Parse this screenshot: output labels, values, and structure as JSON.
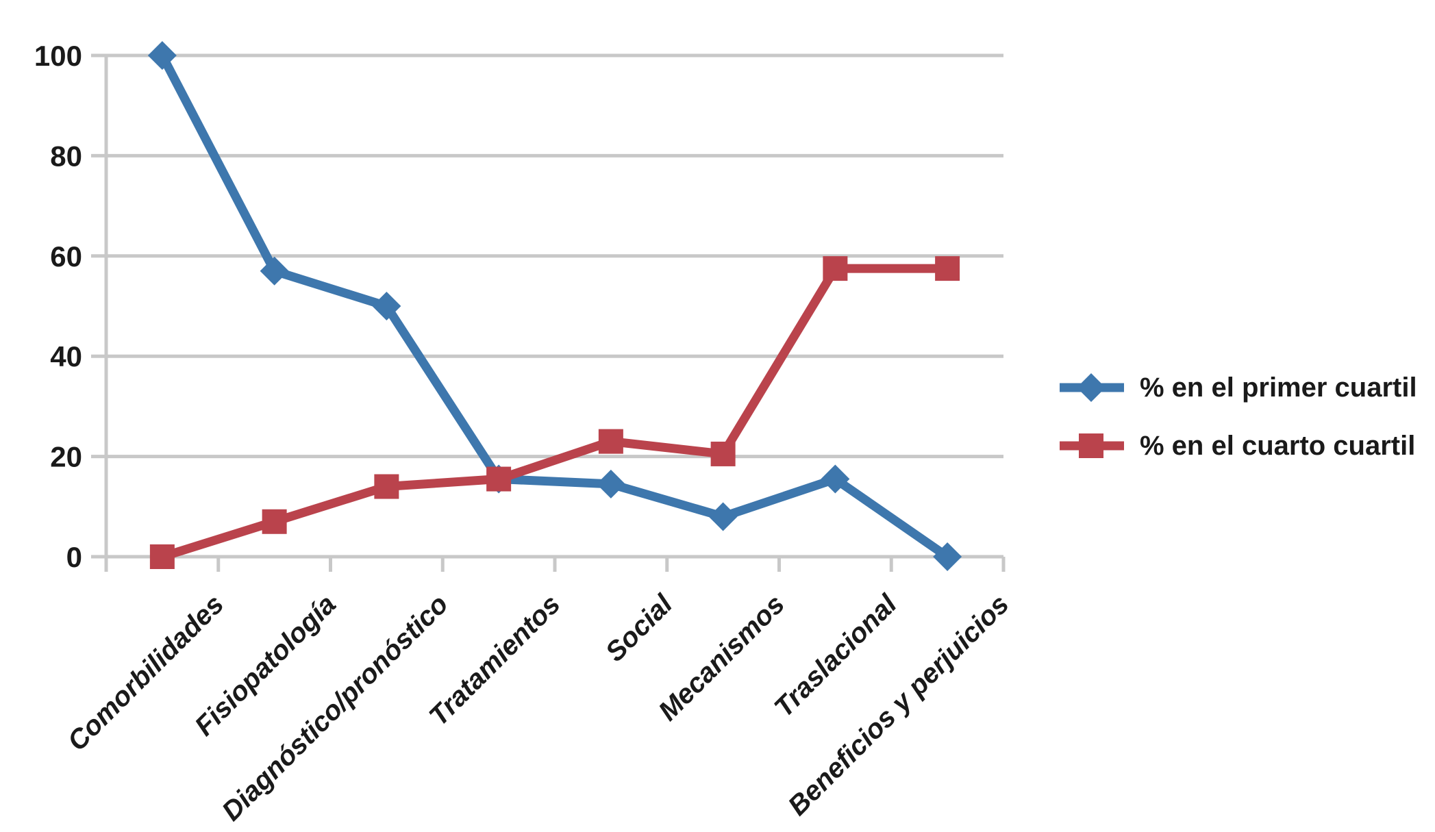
{
  "chart_data": {
    "type": "line",
    "categories": [
      "Comorbilidades",
      "Fisiopatología",
      "Diagnóstico/pronóstico",
      "Tratamientos",
      "Social",
      "Mecanismos",
      "Traslacional",
      "Beneficios y perjuicios"
    ],
    "series": [
      {
        "name": "% en el primer cuartil",
        "color": "#3E77AD",
        "marker": "diamond",
        "values": [
          100,
          57,
          50,
          15.5,
          14.5,
          8,
          15.5,
          0
        ]
      },
      {
        "name": "% en el cuarto cuartil",
        "color": "#BA434C",
        "marker": "square",
        "values": [
          0,
          7,
          14,
          15.5,
          23,
          20.5,
          57.5,
          57.5
        ]
      }
    ],
    "yticks": [
      0,
      20,
      40,
      60,
      80,
      100
    ],
    "ylim": [
      0,
      100
    ],
    "title": "",
    "xlabel": "",
    "ylabel": "",
    "grid": "horizontal",
    "gridline_color": "#C8C8C8",
    "text_color": "#1A1A1A",
    "background": "#FFFFFF",
    "legend_position": "right"
  }
}
